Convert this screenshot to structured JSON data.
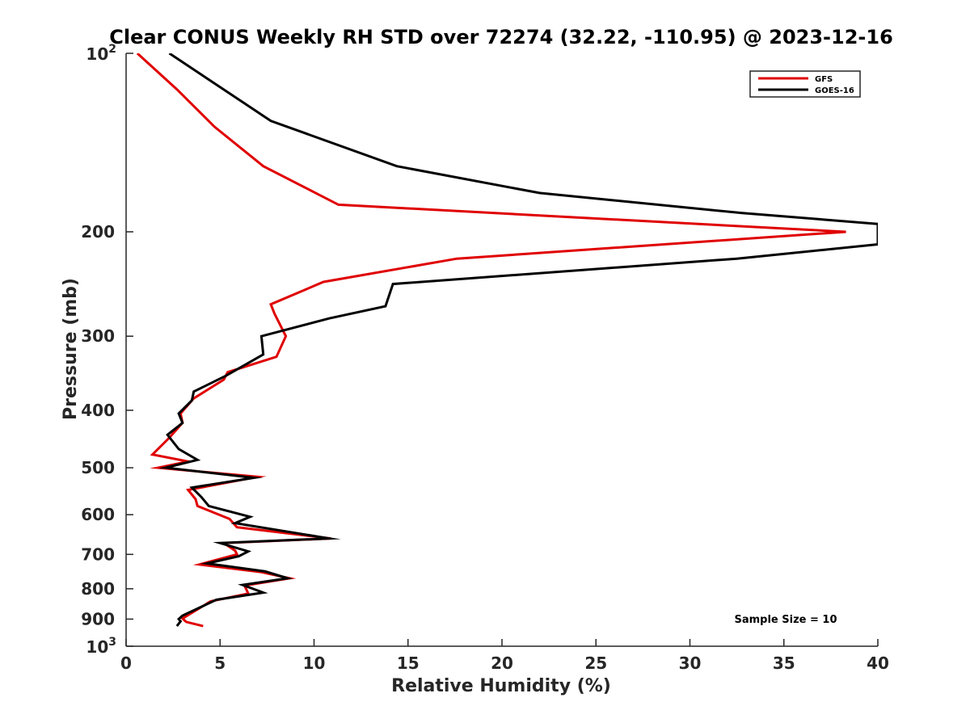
{
  "chart_data": {
    "type": "line",
    "title": "Clear CONUS Weekly RH STD over 72274 (32.22, -110.95) @ 2023-12-16",
    "xlabel": "Relative Humidity (%)",
    "ylabel": "Pressure (mb)",
    "xlim": [
      0,
      40
    ],
    "ylim": [
      100,
      1000
    ],
    "y_scale": "log",
    "y_reversed": true,
    "grid": false,
    "legend_position": "top-right",
    "x_ticks": [
      "0",
      "5",
      "10",
      "15",
      "20",
      "25",
      "30",
      "35",
      "40"
    ],
    "y_ticks": [
      {
        "value": 100,
        "base": "10",
        "exp": "2"
      },
      {
        "value": 200,
        "label": "200"
      },
      {
        "value": 300,
        "label": "300"
      },
      {
        "value": 400,
        "label": "400"
      },
      {
        "value": 500,
        "label": "500"
      },
      {
        "value": 600,
        "label": "600"
      },
      {
        "value": 700,
        "label": "700"
      },
      {
        "value": 800,
        "label": "800"
      },
      {
        "value": 900,
        "label": "900"
      },
      {
        "value": 1000,
        "base": "10",
        "exp": "3"
      }
    ],
    "annotation": "Sample Size = 10",
    "series": [
      {
        "name": "GFS",
        "color": "#e00000",
        "points": [
          [
            0.6,
            100
          ],
          [
            2.7,
            115
          ],
          [
            4.7,
            133
          ],
          [
            7.3,
            155
          ],
          [
            11.3,
            180
          ],
          [
            38.3,
            200
          ],
          [
            17.6,
            222
          ],
          [
            10.5,
            243
          ],
          [
            7.7,
            265
          ],
          [
            7.9,
            275
          ],
          [
            8.5,
            300
          ],
          [
            8.0,
            325
          ],
          [
            5.4,
            345
          ],
          [
            5.2,
            355
          ],
          [
            3.6,
            382
          ],
          [
            2.9,
            405
          ],
          [
            3.0,
            420
          ],
          [
            2.3,
            445
          ],
          [
            1.4,
            475
          ],
          [
            3.3,
            488
          ],
          [
            1.7,
            500
          ],
          [
            7.0,
            518
          ],
          [
            3.3,
            545
          ],
          [
            3.7,
            565
          ],
          [
            3.8,
            580
          ],
          [
            5.5,
            610
          ],
          [
            5.9,
            630
          ],
          [
            10.9,
            658
          ],
          [
            5.2,
            670
          ],
          [
            5.8,
            690
          ],
          [
            5.9,
            700
          ],
          [
            3.9,
            728
          ],
          [
            7.2,
            750
          ],
          [
            8.7,
            768
          ],
          [
            6.3,
            790
          ],
          [
            6.5,
            815
          ],
          [
            4.5,
            840
          ],
          [
            3.0,
            898
          ],
          [
            3.2,
            910
          ],
          [
            4.1,
            925
          ]
        ]
      },
      {
        "name": "GOES-16",
        "color": "#000000",
        "points": [
          [
            2.3,
            100
          ],
          [
            7.7,
            130
          ],
          [
            14.4,
            155
          ],
          [
            22.0,
            172
          ],
          [
            32.8,
            186
          ],
          [
            40.0,
            194
          ],
          [
            40.0,
            210
          ],
          [
            32.5,
            222
          ],
          [
            14.2,
            245
          ],
          [
            13.8,
            267
          ],
          [
            10.8,
            280
          ],
          [
            7.2,
            300
          ],
          [
            7.3,
            322
          ],
          [
            5.3,
            350
          ],
          [
            3.6,
            372
          ],
          [
            3.5,
            385
          ],
          [
            2.8,
            405
          ],
          [
            3.0,
            420
          ],
          [
            2.2,
            440
          ],
          [
            2.8,
            465
          ],
          [
            3.8,
            485
          ],
          [
            2.1,
            500
          ],
          [
            6.8,
            520
          ],
          [
            3.5,
            540
          ],
          [
            4.0,
            560
          ],
          [
            4.4,
            580
          ],
          [
            6.6,
            605
          ],
          [
            5.8,
            620
          ],
          [
            10.8,
            658
          ],
          [
            5.0,
            670
          ],
          [
            6.5,
            692
          ],
          [
            6.0,
            705
          ],
          [
            4.3,
            725
          ],
          [
            7.4,
            748
          ],
          [
            8.6,
            768
          ],
          [
            6.2,
            788
          ],
          [
            7.3,
            812
          ],
          [
            4.8,
            835
          ],
          [
            3.0,
            888
          ],
          [
            2.8,
            900
          ],
          [
            2.9,
            908
          ],
          [
            2.7,
            925
          ]
        ]
      }
    ]
  }
}
